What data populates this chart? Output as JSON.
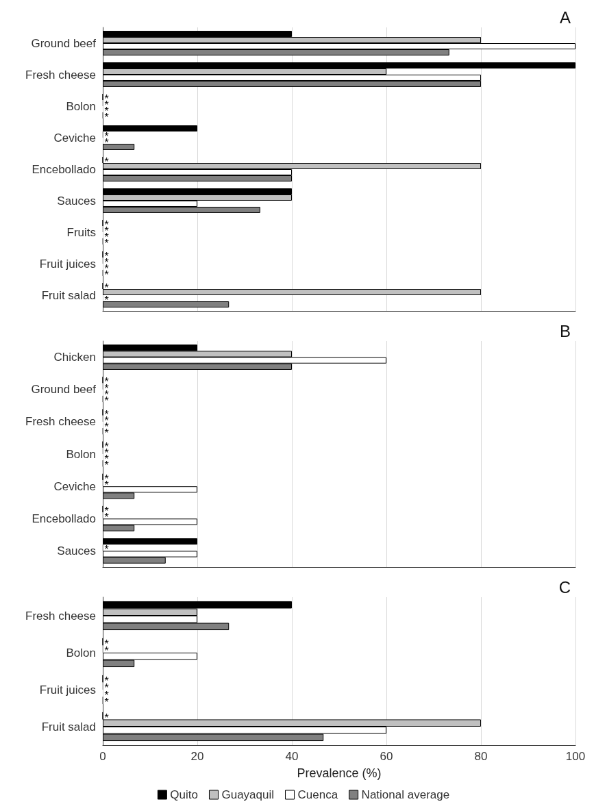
{
  "chart_data": [
    {
      "type": "bar",
      "orientation": "horizontal",
      "title": "A",
      "categories": [
        "Ground beef",
        "Fresh cheese",
        "Bolon",
        "Ceviche",
        "Encebollado",
        "Sauces",
        "Fruits",
        "Fruit juices",
        "Fruit salad"
      ],
      "xlim": [
        0,
        100
      ],
      "xticks": [
        0,
        20,
        40,
        60,
        80,
        100
      ],
      "grid": "x",
      "tick_labels": "y",
      "series": [
        {
          "color": "#000000",
          "values": [
            40,
            100,
            0,
            20,
            0,
            40,
            0,
            0,
            0
          ],
          "value_labels": [
            null,
            null,
            "*",
            null,
            "*",
            null,
            "*",
            "*",
            "*"
          ]
        },
        {
          "color": "#c0c0c0",
          "values": [
            80,
            60,
            0,
            0,
            80,
            40,
            0,
            0,
            80
          ],
          "value_labels": [
            null,
            null,
            "*",
            "*",
            null,
            null,
            "*",
            "*",
            null
          ]
        },
        {
          "color": "#ffffff",
          "values": [
            100,
            80,
            0,
            0,
            40,
            20,
            0,
            0,
            0
          ],
          "value_labels": [
            null,
            null,
            "*",
            "*",
            null,
            null,
            "*",
            "*",
            "*"
          ]
        },
        {
          "color": "#808080",
          "values": [
            73.3,
            80,
            0,
            6.7,
            40,
            33.3,
            0,
            0,
            26.7
          ],
          "value_labels": [
            null,
            null,
            "*",
            null,
            null,
            null,
            "*",
            "*",
            null
          ]
        }
      ]
    },
    {
      "type": "bar",
      "orientation": "horizontal",
      "title": "B",
      "categories": [
        "Chicken",
        "Ground beef",
        "Fresh cheese",
        "Bolon",
        "Ceviche",
        "Encebollado",
        "Sauces"
      ],
      "xlim": [
        0,
        100
      ],
      "xticks": [
        0,
        20,
        40,
        60,
        80,
        100
      ],
      "grid": "x",
      "tick_labels": "y",
      "series": [
        {
          "color": "#000000",
          "values": [
            20,
            0,
            0,
            0,
            0,
            0,
            20
          ],
          "value_labels": [
            null,
            "*",
            "*",
            "*",
            "*",
            "*",
            null
          ]
        },
        {
          "color": "#c0c0c0",
          "values": [
            40,
            0,
            0,
            0,
            0,
            0,
            0
          ],
          "value_labels": [
            null,
            "*",
            "*",
            "*",
            "*",
            "*",
            "*"
          ]
        },
        {
          "color": "#ffffff",
          "values": [
            60,
            0,
            0,
            0,
            20,
            20,
            20
          ],
          "value_labels": [
            null,
            "*",
            "*",
            "*",
            null,
            null,
            null
          ]
        },
        {
          "color": "#808080",
          "values": [
            40,
            0,
            0,
            0,
            6.7,
            6.7,
            13.3
          ],
          "value_labels": [
            null,
            "*",
            "*",
            "*",
            null,
            null,
            null
          ]
        }
      ]
    },
    {
      "type": "bar",
      "orientation": "horizontal",
      "title": "C",
      "xlabel": "Prevalence (%)",
      "categories": [
        "Fresh cheese",
        "Bolon",
        "Fruit juices",
        "Fruit salad"
      ],
      "xlim": [
        0,
        100
      ],
      "xticks": [
        0,
        20,
        40,
        60,
        80,
        100
      ],
      "grid": "x",
      "legend": "bottom",
      "series": [
        {
          "name": "Quito",
          "color": "#000000",
          "values": [
            40,
            0,
            0,
            0
          ],
          "value_labels": [
            null,
            "*",
            "*",
            "*"
          ]
        },
        {
          "name": "Guayaquil",
          "color": "#c0c0c0",
          "values": [
            20,
            0,
            0,
            80
          ],
          "value_labels": [
            null,
            "*",
            "*",
            null
          ]
        },
        {
          "name": "Cuenca",
          "color": "#ffffff",
          "values": [
            20,
            20,
            0,
            60
          ],
          "value_labels": [
            null,
            null,
            "*",
            null
          ]
        },
        {
          "name": "National average",
          "color": "#808080",
          "values": [
            26.7,
            6.7,
            0,
            46.7
          ],
          "value_labels": [
            null,
            null,
            "*",
            null
          ]
        }
      ]
    }
  ]
}
